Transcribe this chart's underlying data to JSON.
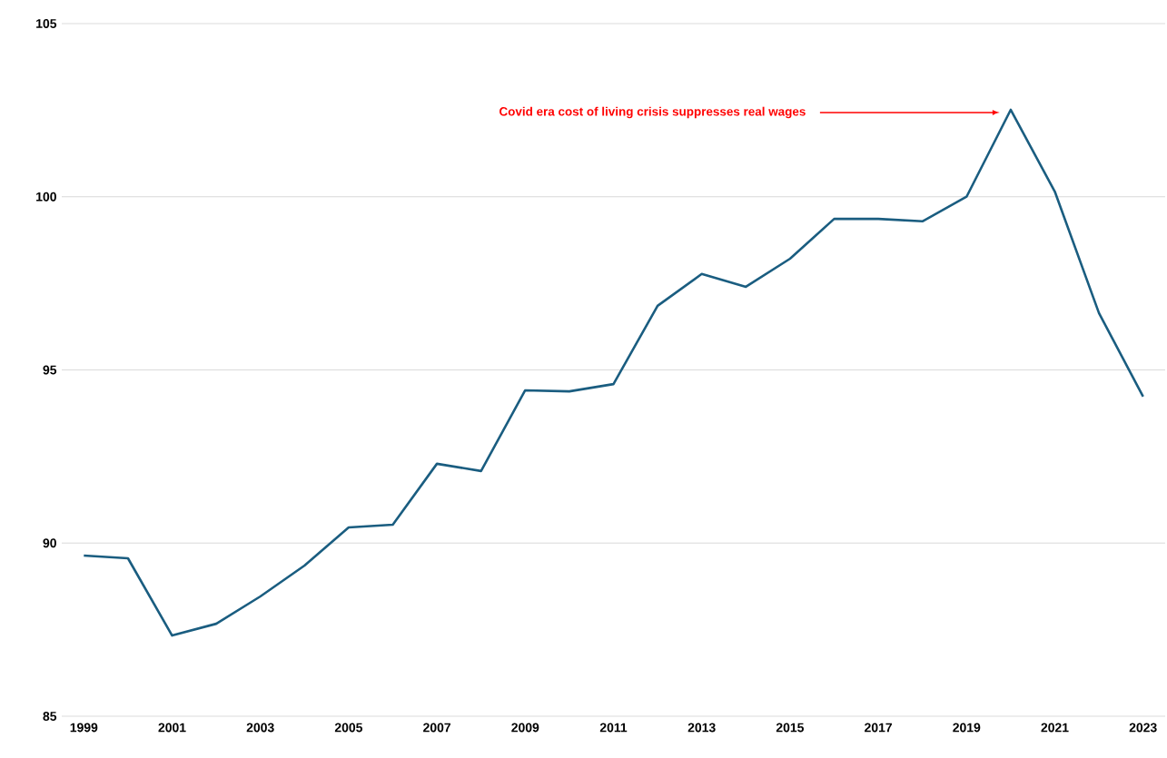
{
  "chart_data": {
    "type": "line",
    "x": [
      1999,
      2000,
      2001,
      2002,
      2003,
      2004,
      2005,
      2006,
      2007,
      2008,
      2009,
      2010,
      2011,
      2012,
      2013,
      2014,
      2015,
      2016,
      2017,
      2018,
      2019,
      2020,
      2021,
      2022,
      2023
    ],
    "series": [
      {
        "color": "#1a5d80",
        "values": [
          89.64,
          89.56,
          87.33,
          87.67,
          88.46,
          89.35,
          90.45,
          90.53,
          92.29,
          92.08,
          94.41,
          94.38,
          94.59,
          96.85,
          97.77,
          97.4,
          98.21,
          99.36,
          99.36,
          99.29,
          100.0,
          102.51,
          100.15,
          96.64,
          94.23
        ]
      }
    ],
    "xlim": [
      1998.5,
      2023.5
    ],
    "xticks": [
      1999,
      2001,
      2003,
      2005,
      2007,
      2009,
      2011,
      2013,
      2015,
      2017,
      2019,
      2021,
      2023
    ],
    "ylim": [
      85,
      105
    ],
    "yticks": [
      85,
      90,
      95,
      100,
      105
    ],
    "grid": "y",
    "marker": "none",
    "line_style": "solid",
    "annotations": [
      "Covid era cost of living crisis suppresses real wages"
    ]
  }
}
